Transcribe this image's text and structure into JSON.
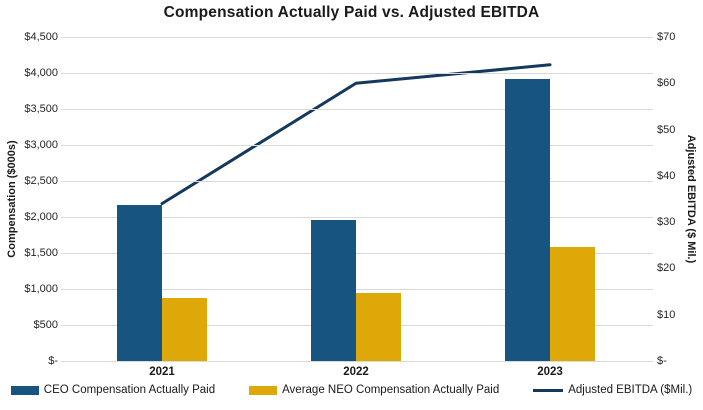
{
  "title": "Compensation Actually Paid vs. Adjusted EBITDA",
  "chart_data": {
    "type": "combo-bar-line",
    "title": "Compensation Actually Paid vs. Adjusted EBITDA",
    "categories": [
      "2021",
      "2022",
      "2023"
    ],
    "series": [
      {
        "name": "CEO Compensation Actually Paid",
        "type": "bar",
        "axis": "left",
        "color": "#175480",
        "values": [
          2170,
          1960,
          3920
        ]
      },
      {
        "name": "Average NEO Compensation Actually Paid",
        "type": "bar",
        "axis": "left",
        "color": "#DEA908",
        "values": [
          870,
          950,
          1580
        ]
      },
      {
        "name": "Adjusted EBITDA ($Mil.)",
        "type": "line",
        "axis": "right",
        "color": "#14395C",
        "values": [
          34,
          60,
          64
        ]
      }
    ],
    "left_axis": {
      "label": "Compensation ($000s)",
      "min": 0,
      "max": 4500,
      "tick_step": 500,
      "tick_labels": [
        "$-",
        "$500",
        "$1,000",
        "$1,500",
        "$2,000",
        "$2,500",
        "$3,000",
        "$3,500",
        "$4,000",
        "$4,500"
      ]
    },
    "right_axis": {
      "label": "Adjusted EBITDA ($ Mil.)",
      "min": 0,
      "max": 70,
      "tick_step": 10,
      "tick_labels": [
        "$-",
        "$10",
        "$20",
        "$30",
        "$40",
        "$50",
        "$60",
        "$70"
      ]
    },
    "grid": true,
    "gridline_color": "#D9D9D9",
    "legend_position": "bottom"
  }
}
